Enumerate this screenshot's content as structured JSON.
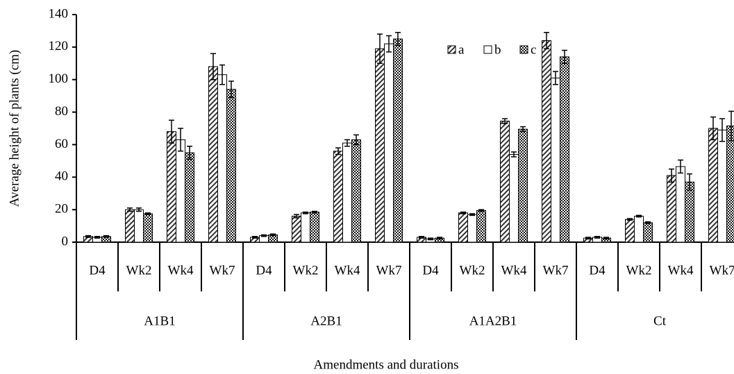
{
  "chart_data": {
    "type": "bar",
    "y_label": "Average height of plants (cm)",
    "x_label": "Amendments and durations",
    "categories": [
      "D4",
      "Wk2",
      "Wk4",
      "Wk7",
      "D4",
      "Wk2",
      "Wk4",
      "Wk7",
      "D4",
      "Wk2",
      "Wk4",
      "Wk7",
      "D4",
      "Wk2",
      "Wk4",
      "Wk7"
    ],
    "category_groups": [
      "A1B1",
      "A2B1",
      "A1A2B1",
      "Ct"
    ],
    "series": [
      {
        "name": "a",
        "color": "#000000",
        "values": [
          3.5,
          20,
          68,
          108,
          3,
          16,
          56,
          119,
          3,
          18,
          74.5,
          124,
          2.5,
          14,
          41,
          70
        ],
        "errors": [
          0.5,
          1,
          7,
          8,
          0.5,
          1,
          2,
          9,
          0.5,
          0.5,
          1.5,
          5,
          0.5,
          0.5,
          4,
          7
        ]
      },
      {
        "name": "b",
        "color": "#000000",
        "values": [
          3,
          20,
          63,
          103,
          4,
          18,
          61,
          122,
          2,
          17,
          54,
          101,
          3,
          16,
          46.5,
          69
        ],
        "errors": [
          0.5,
          1,
          7,
          6,
          0.5,
          0.5,
          2,
          5,
          0.5,
          0.5,
          1.5,
          4,
          0.5,
          0.5,
          4,
          7
        ]
      },
      {
        "name": "c",
        "color": "#000000",
        "values": [
          3.5,
          17.5,
          55,
          94,
          4.5,
          18.5,
          63,
          125,
          2.5,
          19.5,
          69.5,
          114,
          2.5,
          12,
          37,
          71.5
        ],
        "errors": [
          0.5,
          0.5,
          4,
          5,
          0.5,
          0.5,
          3,
          4,
          0.5,
          0.5,
          1.5,
          4,
          0.5,
          0.5,
          5,
          9
        ]
      }
    ],
    "ylim": [
      0,
      140
    ],
    "yticks": [
      0,
      20,
      40,
      60,
      80,
      100,
      120,
      140
    ]
  }
}
